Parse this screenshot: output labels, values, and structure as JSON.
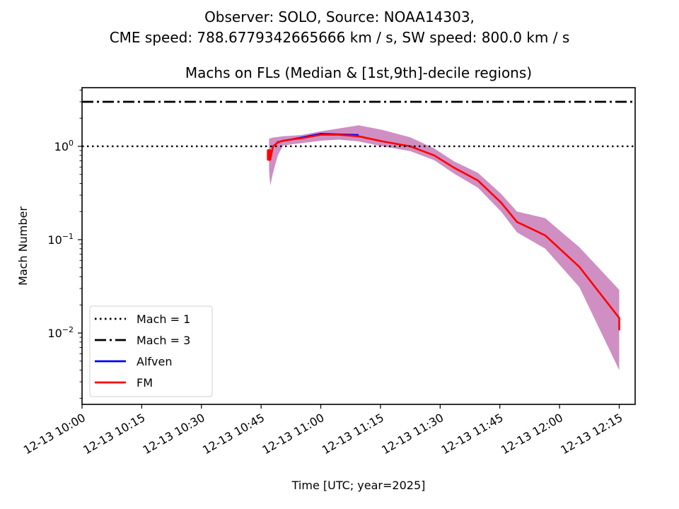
{
  "figure": {
    "suptitle_line1": "Observer: SOLO, Source: NOAA14303,",
    "suptitle_line2": "CME speed: 788.6779342665666 km / s, SW speed: 800.0 km / s"
  },
  "chart_data": {
    "type": "line",
    "title": "Machs on FLs (Median & [1st,9th]-decile regions)",
    "xlabel": "Time [UTC; year=2025]",
    "ylabel": "Mach Number",
    "yscale": "log",
    "ylim": [
      0.00172,
      4.25
    ],
    "xlim_minutes_after_1000": [
      0,
      139
    ],
    "x_tick_labels": [
      "12-13 10:00",
      "12-13 10:15",
      "12-13 10:30",
      "12-13 10:45",
      "12-13 11:00",
      "12-13 11:15",
      "12-13 11:30",
      "12-13 11:45",
      "12-13 12:00",
      "12-13 12:15"
    ],
    "x_tick_minutes": [
      0,
      15,
      30,
      45,
      60,
      75,
      90,
      105,
      120,
      135
    ],
    "y_tick_labels": [
      {
        "base": "10",
        "exp": "0",
        "value": 1
      },
      {
        "base": "10",
        "exp": "−1",
        "value": 0.1
      },
      {
        "base": "10",
        "exp": "−2",
        "value": 0.01
      }
    ],
    "grid": false,
    "legend": {
      "placement": "lower-left",
      "entries": [
        {
          "label": "Mach = 1",
          "style": "dotted",
          "color": "#000000"
        },
        {
          "label": "Mach = 3",
          "style": "dashdot",
          "color": "#000000"
        },
        {
          "label": "Alfven",
          "style": "solid",
          "color": "#0000ff"
        },
        {
          "label": "FM",
          "style": "solid",
          "color": "#ff0000"
        }
      ]
    },
    "hlines": [
      {
        "name": "Mach = 1",
        "value": 1,
        "style": "dotted"
      },
      {
        "name": "Mach = 3",
        "value": 3,
        "style": "dashdot"
      }
    ],
    "band_color": "#cf8fc2",
    "series": [
      {
        "name": "FM",
        "color": "#ff0000",
        "x_minutes": [
          47.0,
          47.3,
          48.0,
          49.2,
          50.5,
          55.0,
          60.0,
          64.5,
          69.5,
          75.5,
          82.5,
          88.5,
          93.5,
          99.5,
          105.3,
          109.3,
          116.4,
          125.0,
          135.0
        ],
        "median": [
          0.8,
          0.72,
          1.0,
          1.1,
          1.15,
          1.22,
          1.33,
          1.33,
          1.28,
          1.13,
          1.0,
          0.8,
          0.59,
          0.43,
          0.25,
          0.155,
          0.111,
          0.051,
          0.0145
        ],
        "decile_1": [
          0.55,
          0.38,
          0.52,
          0.8,
          1.02,
          1.08,
          1.15,
          1.18,
          1.13,
          1.0,
          0.89,
          0.71,
          0.51,
          0.36,
          0.2,
          0.12,
          0.08,
          0.031,
          0.004
        ],
        "decile_9": [
          1.2,
          1.22,
          1.24,
          1.26,
          1.28,
          1.32,
          1.45,
          1.55,
          1.68,
          1.5,
          1.25,
          0.95,
          0.69,
          0.52,
          0.31,
          0.2,
          0.17,
          0.083,
          0.029
        ]
      },
      {
        "name": "Alfven",
        "color": "#0000ff",
        "x_minutes": [
          49.0,
          60.0,
          69.5
        ],
        "median": [
          1.08,
          1.33,
          1.29
        ]
      }
    ],
    "tail": {
      "x_minutes": 135.0,
      "median_end": 0.0107,
      "decile_1_end": 0.0024,
      "decile_9_end": 0.0175
    }
  }
}
